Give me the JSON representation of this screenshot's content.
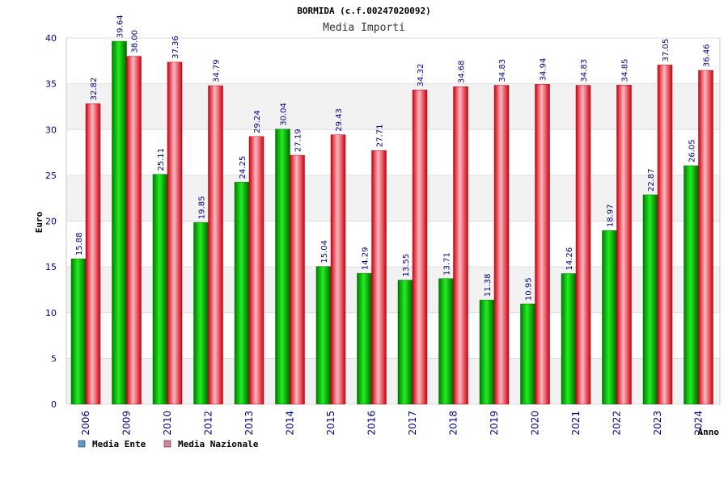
{
  "chart_data": {
    "type": "bar",
    "title": "BORMIDA (c.f.00247020092)",
    "subtitle": "Media Importi",
    "ylabel": "Euro",
    "xlabel": "Anno",
    "ylim": [
      0,
      40
    ],
    "yticks": [
      0,
      5,
      10,
      15,
      20,
      25,
      30,
      35,
      40
    ],
    "grid": true,
    "legend_position": "bottom-left",
    "categories": [
      "2006",
      "2009",
      "2010",
      "2012",
      "2013",
      "2014",
      "2015",
      "2016",
      "2017",
      "2018",
      "2019",
      "2020",
      "2021",
      "2022",
      "2023",
      "2024"
    ],
    "series": [
      {
        "name": "Media Ente",
        "color": "#00c000",
        "legend_color": "#5b9bd5",
        "values": [
          15.88,
          39.64,
          25.11,
          19.85,
          24.25,
          30.04,
          15.04,
          14.29,
          13.55,
          13.71,
          11.38,
          10.95,
          14.26,
          18.97,
          22.87,
          26.05
        ],
        "labels": [
          "15.88",
          "39.64",
          "25.11",
          "19.85",
          "24.25",
          "30.04",
          "15.04",
          "14.29",
          "13.55",
          "13.71",
          "11.38",
          "10.95",
          "14.26",
          "18.97",
          "22.87",
          "26.05"
        ]
      },
      {
        "name": "Media Nazionale",
        "color": "#e8102a",
        "legend_color": "#e07ca0",
        "values": [
          32.82,
          38.0,
          37.36,
          34.79,
          29.24,
          27.19,
          29.43,
          27.71,
          34.32,
          34.68,
          34.83,
          34.94,
          34.83,
          34.85,
          37.05,
          36.46
        ],
        "labels": [
          "32.82",
          "38.00",
          "37.36",
          "34.79",
          "29.24",
          "27.19",
          "29.43",
          "27.71",
          "34.32",
          "34.68",
          "34.83",
          "34.94",
          "34.83",
          "34.85",
          "37.05",
          "36.46"
        ]
      }
    ]
  }
}
